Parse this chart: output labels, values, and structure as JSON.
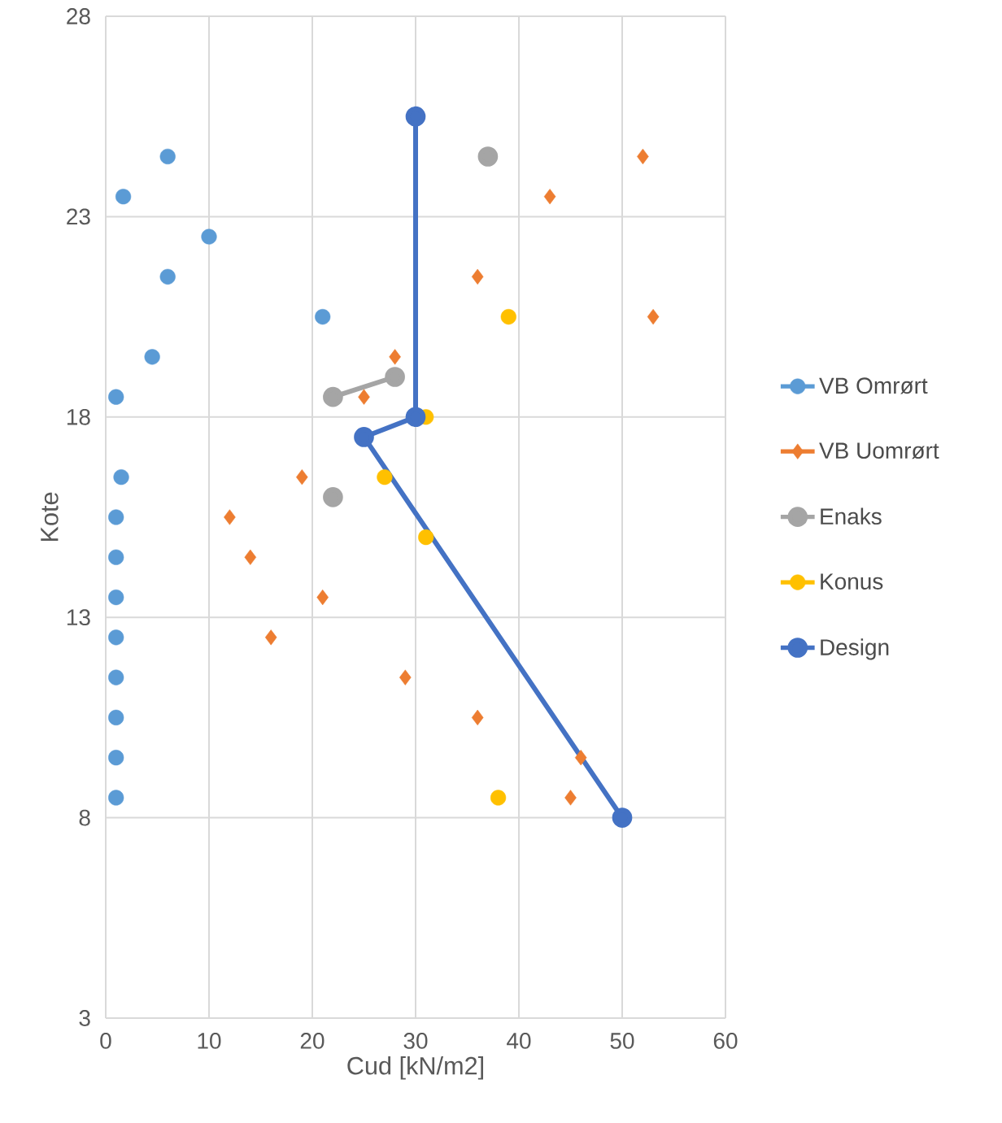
{
  "chart_data": {
    "type": "scatter",
    "xlabel": "Cud [kN/m2]",
    "ylabel": "Kote",
    "xlim": [
      0,
      60
    ],
    "xticks": [
      0,
      10,
      20,
      30,
      40,
      50,
      60
    ],
    "ylim": [
      3,
      28
    ],
    "yticks": [
      3,
      8,
      13,
      18,
      23,
      28
    ],
    "grid": true,
    "legend": "right",
    "series": [
      {
        "name": "VB Omrørt",
        "marker": "circle",
        "color": "#5b9bd5",
        "x": [
          6,
          1.7,
          10,
          6,
          21,
          4.5,
          1,
          1.5,
          1,
          1,
          1,
          1,
          1,
          1,
          1,
          1
        ],
        "values": [
          24.5,
          23.5,
          22.5,
          21.5,
          20.5,
          19.5,
          18.5,
          16.5,
          15.5,
          14.5,
          13.5,
          12.5,
          11.5,
          10.5,
          9.5,
          8.5
        ]
      },
      {
        "name": "VB Uomrørt",
        "marker": "diamond",
        "color": "#ed7d31",
        "x": [
          52,
          43,
          36,
          53,
          28,
          25,
          19,
          12,
          14,
          21,
          16,
          29,
          36,
          46,
          45
        ],
        "values": [
          24.5,
          23.5,
          21.5,
          20.5,
          19.5,
          18.5,
          16.5,
          15.5,
          14.5,
          13.5,
          12.5,
          11.5,
          10.5,
          9.5,
          8.5
        ]
      },
      {
        "name": "Enaks",
        "type": "line",
        "marker": "circle",
        "color": "#a5a5a5",
        "x": [
          37,
          null,
          28,
          22,
          null,
          22
        ],
        "values": [
          24.5,
          null,
          19,
          18.5,
          null,
          16
        ]
      },
      {
        "name": "Konus",
        "marker": "circle",
        "color": "#ffc000",
        "x": [
          39,
          31,
          27,
          31,
          38
        ],
        "values": [
          20.5,
          18,
          16.5,
          15,
          8.5
        ]
      },
      {
        "name": "Design",
        "type": "line",
        "marker": "circle",
        "color": "#4472c4",
        "x": [
          30,
          30,
          25,
          50
        ],
        "values": [
          25.5,
          18,
          17.5,
          8
        ]
      }
    ]
  }
}
